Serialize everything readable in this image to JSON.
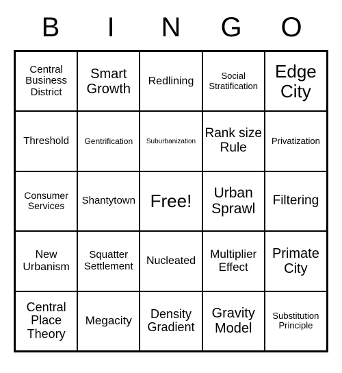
{
  "header": {
    "letters": [
      "B",
      "I",
      "N",
      "G",
      "O"
    ]
  },
  "grid": {
    "type": "bingo-grid",
    "rows": 5,
    "cols": 5,
    "border_color": "#000000",
    "background_color": "#ffffff",
    "text_color": "#000000",
    "header_fontsize": 40,
    "cells": [
      {
        "text": "Central Business District",
        "fontsize": 15
      },
      {
        "text": "Smart Growth",
        "fontsize": 20
      },
      {
        "text": "Redlining",
        "fontsize": 16
      },
      {
        "text": "Social Stratification",
        "fontsize": 13
      },
      {
        "text": "Edge City",
        "fontsize": 26
      },
      {
        "text": "Threshold",
        "fontsize": 15
      },
      {
        "text": "Gentrification",
        "fontsize": 12
      },
      {
        "text": "Suburbanization",
        "fontsize": 10
      },
      {
        "text": "Rank size Rule",
        "fontsize": 19
      },
      {
        "text": "Privatization",
        "fontsize": 13
      },
      {
        "text": "Consumer Services",
        "fontsize": 14
      },
      {
        "text": "Shantytown",
        "fontsize": 15
      },
      {
        "text": "Free!",
        "fontsize": 26
      },
      {
        "text": "Urban Sprawl",
        "fontsize": 21
      },
      {
        "text": "Filtering",
        "fontsize": 19
      },
      {
        "text": "New Urbanism",
        "fontsize": 16
      },
      {
        "text": "Squatter Settlement",
        "fontsize": 15
      },
      {
        "text": "Nucleated",
        "fontsize": 16
      },
      {
        "text": "Multiplier Effect",
        "fontsize": 17
      },
      {
        "text": "Primate City",
        "fontsize": 20
      },
      {
        "text": "Central Place Theory",
        "fontsize": 18
      },
      {
        "text": "Megacity",
        "fontsize": 17
      },
      {
        "text": "Density Gradient",
        "fontsize": 18
      },
      {
        "text": "Gravity Model",
        "fontsize": 20
      },
      {
        "text": "Substitution Principle",
        "fontsize": 13
      }
    ]
  }
}
